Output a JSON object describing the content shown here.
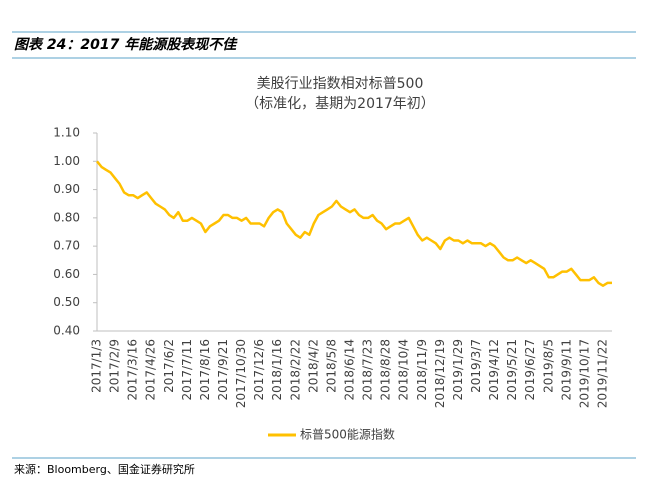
{
  "header": {
    "title": "图表 24：2017 年能源股表现不佳"
  },
  "footer": {
    "source": "来源：Bloomberg、国金证券研究所"
  },
  "chart_data": {
    "type": "line",
    "title": "美股行业指数相对标普500",
    "subtitle": "（标准化，基期为2017年初）",
    "categories": [
      "2017/1/3",
      null,
      null,
      null,
      "2017/2/9",
      null,
      null,
      null,
      "2017/3/16",
      null,
      null,
      null,
      "2017/4/26",
      null,
      null,
      null,
      "2017/6/2",
      null,
      null,
      null,
      "2017/7/11",
      null,
      null,
      null,
      "2017/8/16",
      null,
      null,
      null,
      "2017/9/21",
      null,
      null,
      null,
      "2017/10/30",
      null,
      null,
      null,
      "2017/12/6",
      null,
      null,
      null,
      "2018/1/16",
      null,
      null,
      null,
      "2018/2/22",
      null,
      null,
      null,
      "2018/4/2",
      null,
      null,
      null,
      "2018/5/8",
      null,
      null,
      null,
      "2018/6/14",
      null,
      null,
      null,
      "2018/7/23",
      null,
      null,
      null,
      "2018/8/28",
      null,
      null,
      null,
      "2018/10/4",
      null,
      null,
      null,
      "2018/11/9",
      null,
      null,
      null,
      "2018/12/19",
      null,
      null,
      null,
      "2019/1/29",
      null,
      null,
      null,
      "2019/3/7",
      null,
      null,
      null,
      "2019/4/12",
      null,
      null,
      null,
      "2019/5/21",
      null,
      null,
      null,
      "2019/6/27",
      null,
      null,
      null,
      "2019/8/5",
      null,
      null,
      null,
      "2019/9/11",
      null,
      null,
      null,
      "2019/10/17",
      null,
      null,
      null,
      "2019/11/22",
      null,
      null
    ],
    "series": [
      {
        "name": "标普500能源指数",
        "color": "#FFC000",
        "values": [
          1.0,
          0.98,
          0.97,
          0.96,
          0.94,
          0.92,
          0.89,
          0.88,
          0.88,
          0.87,
          0.88,
          0.89,
          0.87,
          0.85,
          0.84,
          0.83,
          0.81,
          0.8,
          0.82,
          0.79,
          0.79,
          0.8,
          0.79,
          0.78,
          0.75,
          0.77,
          0.78,
          0.79,
          0.81,
          0.81,
          0.8,
          0.8,
          0.79,
          0.8,
          0.78,
          0.78,
          0.78,
          0.77,
          0.8,
          0.82,
          0.83,
          0.82,
          0.78,
          0.76,
          0.74,
          0.73,
          0.75,
          0.74,
          0.78,
          0.81,
          0.82,
          0.83,
          0.84,
          0.86,
          0.84,
          0.83,
          0.82,
          0.83,
          0.81,
          0.8,
          0.8,
          0.81,
          0.79,
          0.78,
          0.76,
          0.77,
          0.78,
          0.78,
          0.79,
          0.8,
          0.77,
          0.74,
          0.72,
          0.73,
          0.72,
          0.71,
          0.69,
          0.72,
          0.73,
          0.72,
          0.72,
          0.71,
          0.72,
          0.71,
          0.71,
          0.71,
          0.7,
          0.71,
          0.7,
          0.68,
          0.66,
          0.65,
          0.65,
          0.66,
          0.65,
          0.64,
          0.65,
          0.64,
          0.63,
          0.62,
          0.59,
          0.59,
          0.6,
          0.61,
          0.61,
          0.62,
          0.6,
          0.58,
          0.58,
          0.58,
          0.59,
          0.57,
          0.56,
          0.57,
          0.57
        ]
      }
    ],
    "ylim": [
      0.4,
      1.1
    ],
    "yticks": [
      {
        "value": 0.4,
        "label": "0.40"
      },
      {
        "value": 0.5,
        "label": "0.50"
      },
      {
        "value": 0.6,
        "label": "0.60"
      },
      {
        "value": 0.7,
        "label": "0.70"
      },
      {
        "value": 0.8,
        "label": "0.80"
      },
      {
        "value": 0.9,
        "label": "0.90"
      },
      {
        "value": 1.0,
        "label": "1.00"
      },
      {
        "value": 1.1,
        "label": "1.10"
      }
    ],
    "legend": "bottom"
  }
}
